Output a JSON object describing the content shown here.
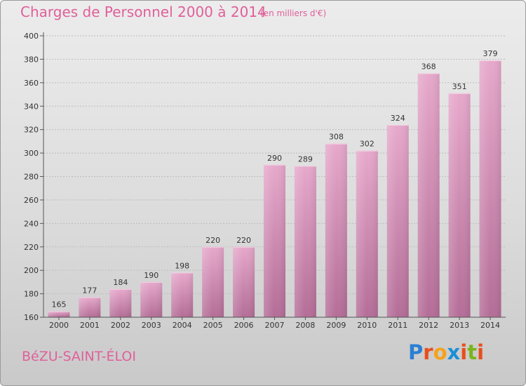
{
  "chart_data": {
    "type": "bar",
    "title": "Charges de Personnel 2000 à 2014",
    "subtitle": "(en milliers d'€)",
    "categories": [
      "2000",
      "2001",
      "2002",
      "2003",
      "2004",
      "2005",
      "2006",
      "2007",
      "2008",
      "2009",
      "2010",
      "2011",
      "2012",
      "2013",
      "2014"
    ],
    "values": [
      165,
      177,
      184,
      190,
      198,
      220,
      220,
      290,
      289,
      308,
      302,
      324,
      368,
      351,
      379
    ],
    "ylim": [
      160,
      400
    ],
    "yticks": [
      160,
      180,
      200,
      220,
      240,
      260,
      280,
      300,
      320,
      340,
      360,
      380,
      400
    ],
    "grid": true,
    "xlabel": "",
    "ylabel": "",
    "bar_color": "#d98bb6"
  },
  "commune": "BéZU-SAINT-ÉLOI",
  "logo": {
    "text": "Proxiti",
    "letter_colors": [
      "#2a7fd4",
      "#e94e1b",
      "#f4a21c",
      "#1c8fd6",
      "#e94e1b",
      "#7ab51d",
      "#e94e1b"
    ]
  }
}
